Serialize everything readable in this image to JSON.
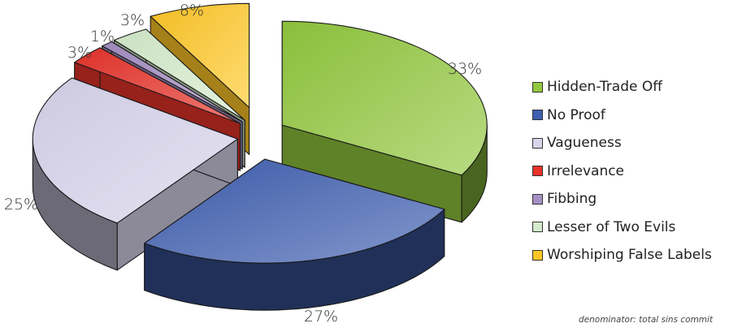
{
  "chart_data": {
    "type": "pie",
    "style": "3d-exploded",
    "categories": [
      "Hidden-Trade Off",
      "No Proof",
      "Vagueness",
      "Irrelevance",
      "Fibbing",
      "Lesser of Two Evils",
      "Worshiping False Labels"
    ],
    "values": [
      33,
      27,
      25,
      3,
      1,
      3,
      8
    ],
    "labels": [
      "33%",
      "27%",
      "25%",
      "3%",
      "1%",
      "3%",
      "8%"
    ],
    "colors": [
      "#92c83e",
      "#3f5fb0",
      "#d8d4ec",
      "#e8322a",
      "#a58fc4",
      "#d5edcc",
      "#ffc726"
    ],
    "legend": "right",
    "title": ""
  },
  "footnote": "denominator: total sins commit"
}
